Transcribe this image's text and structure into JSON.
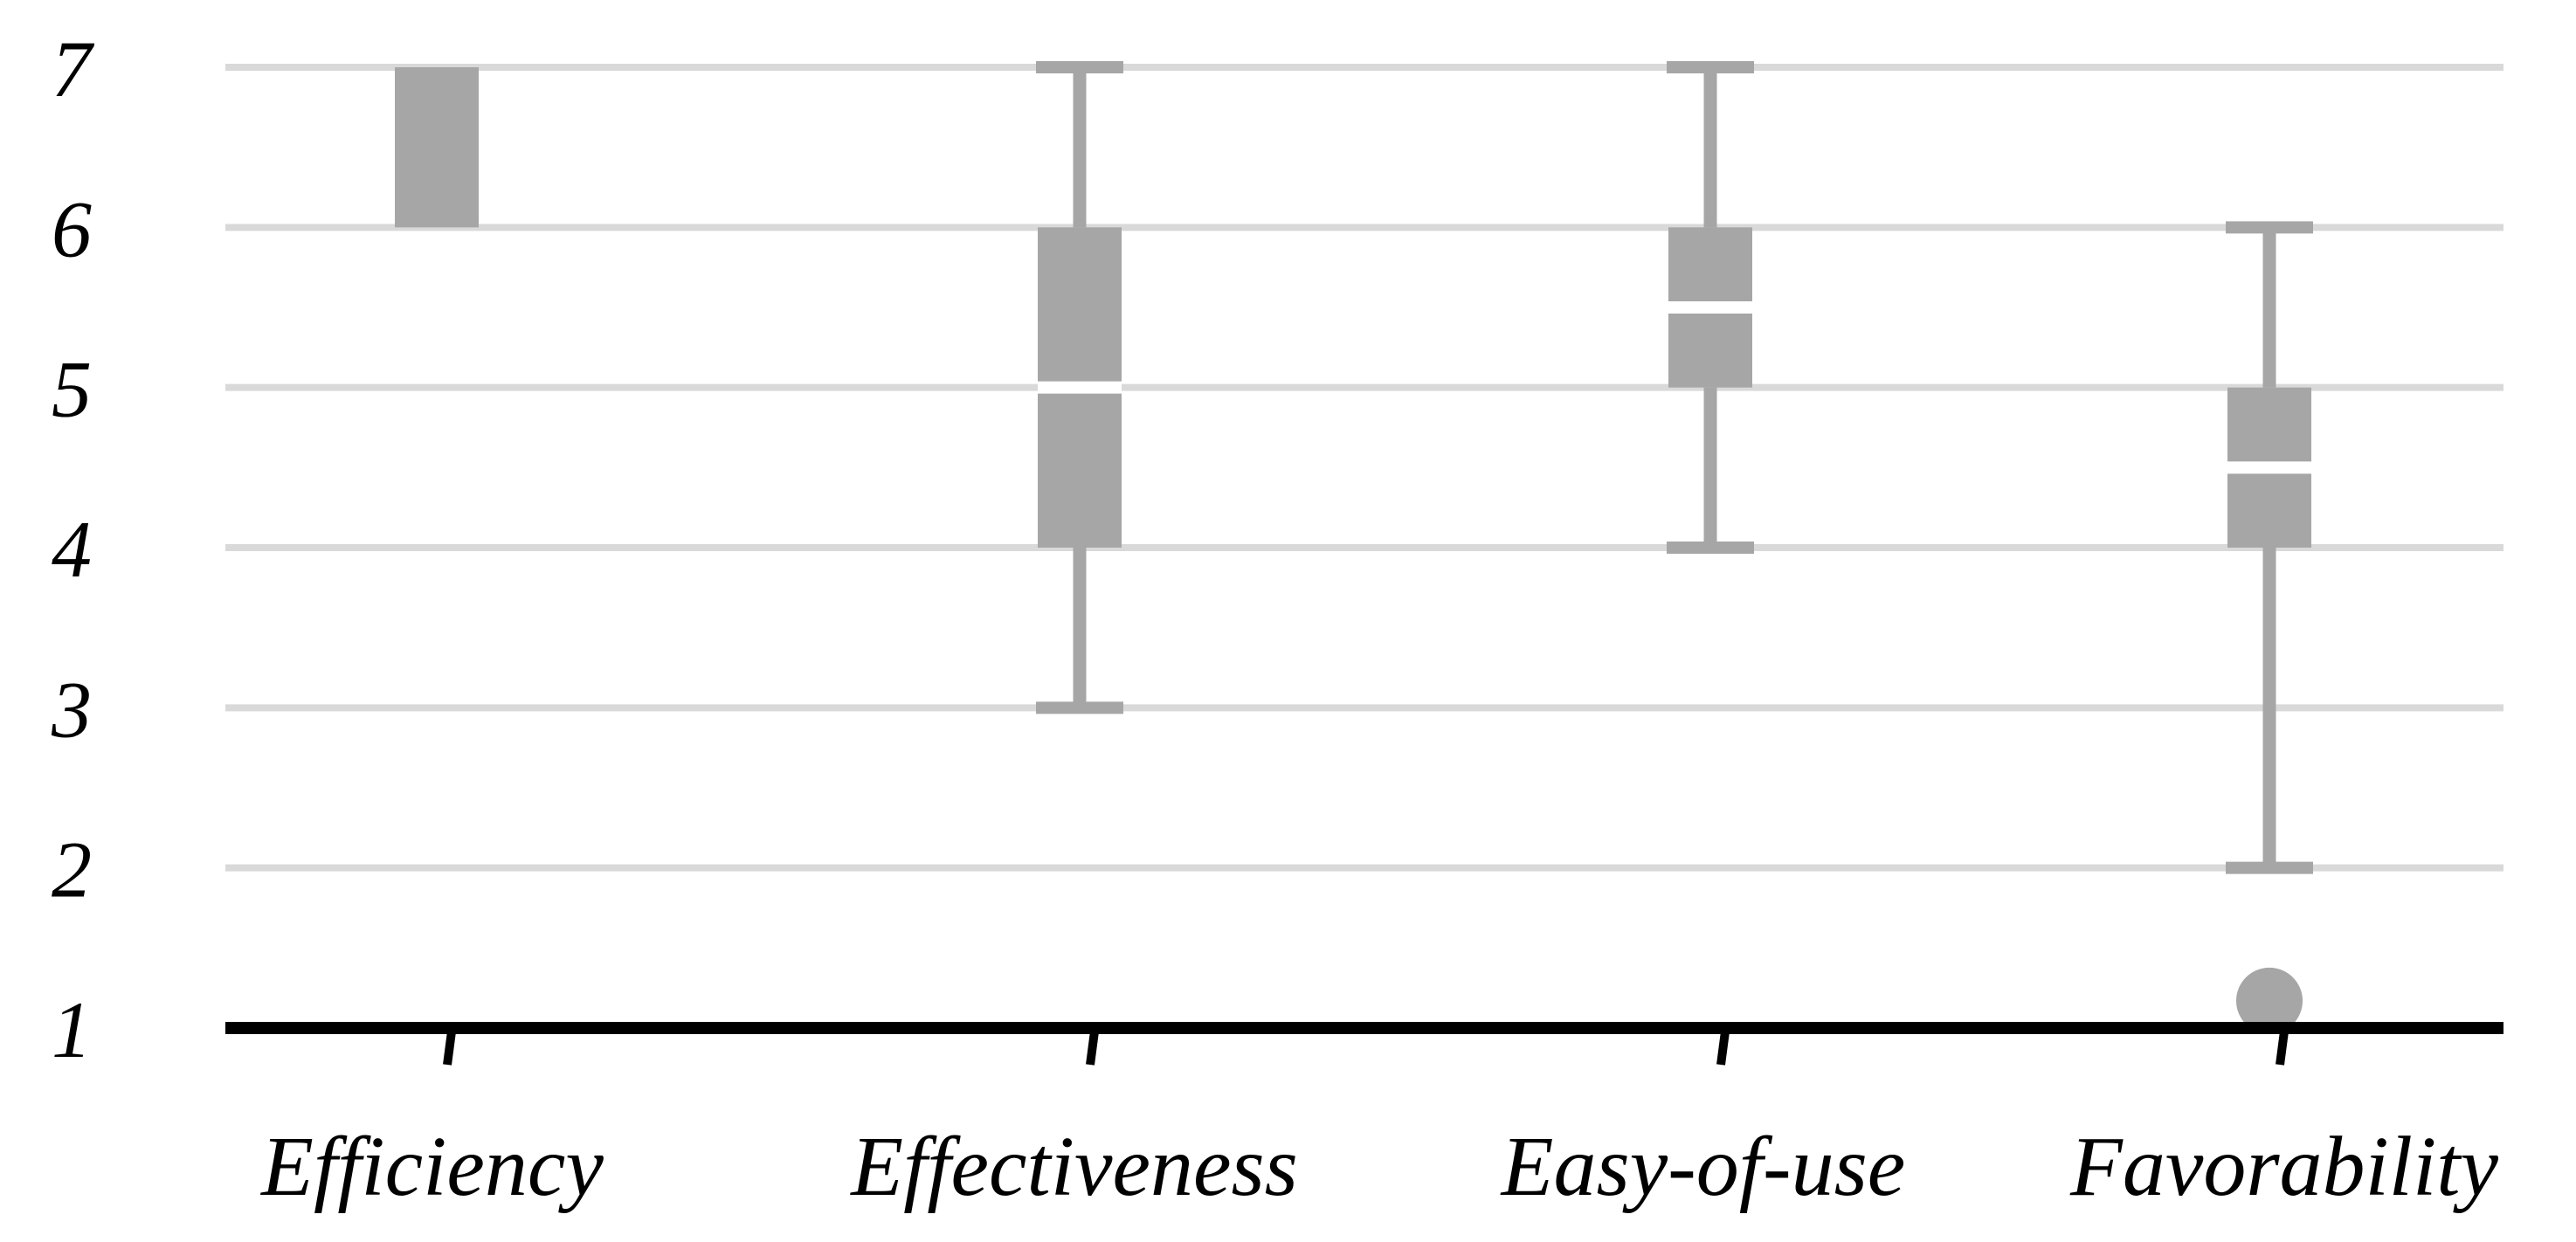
{
  "chart_data": {
    "type": "box",
    "title": "",
    "xlabel": "",
    "ylabel": "",
    "ylim": [
      1,
      7
    ],
    "yticks": [
      1,
      2,
      3,
      4,
      5,
      6,
      7
    ],
    "grid": true,
    "legend": "none",
    "categories": [
      "Efficiency",
      "Effectiveness",
      "Easy-of-use",
      "Favorability"
    ],
    "boxes": [
      {
        "category": "Efficiency",
        "whisker_low": 6,
        "q1": 6,
        "median": 7,
        "q3": 7,
        "whisker_high": 7,
        "outliers": []
      },
      {
        "category": "Effectiveness",
        "whisker_low": 3,
        "q1": 4,
        "median": 5,
        "q3": 6,
        "whisker_high": 7,
        "outliers": []
      },
      {
        "category": "Easy-of-use",
        "whisker_low": 4,
        "q1": 5,
        "median": 5.5,
        "q3": 6,
        "whisker_high": 7,
        "outliers": []
      },
      {
        "category": "Favorability",
        "whisker_low": 2,
        "q1": 4,
        "median": 4.5,
        "q3": 5,
        "whisker_high": 6,
        "outliers": [
          1.17
        ]
      }
    ],
    "colors": {
      "box": "#a6a6a6",
      "whisker": "#a6a6a6",
      "median": "#ffffff",
      "grid": "#d9d9d9",
      "axis": "#000000",
      "outlier": "#a6a6a6"
    }
  }
}
